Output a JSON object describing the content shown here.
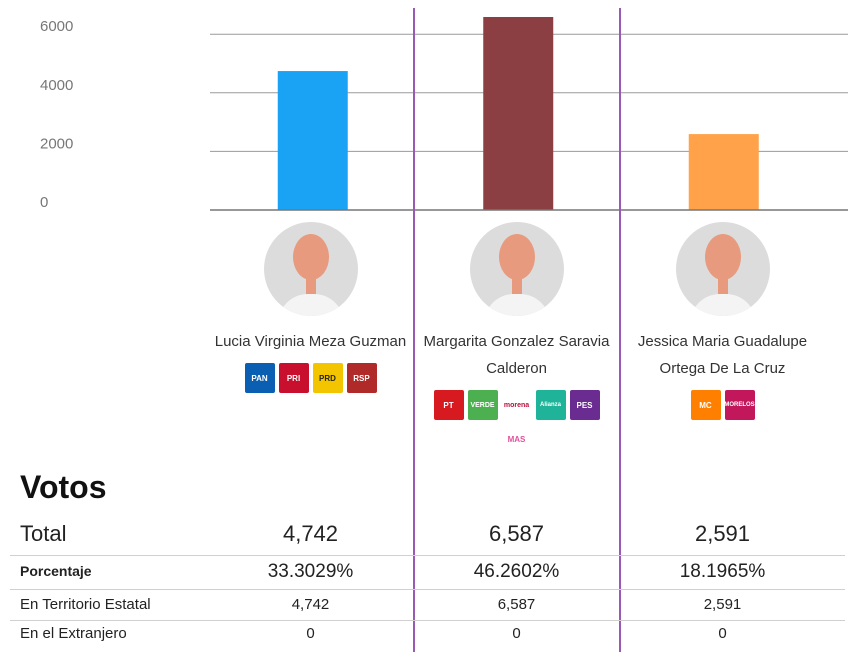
{
  "chart_data": {
    "type": "bar",
    "categories": [
      "Lucia Virginia Meza Guzman",
      "Margarita Gonzalez Saravia Calderon",
      "Jessica Maria Guadalupe Ortega De La Cruz"
    ],
    "values": [
      4742,
      6587,
      2591
    ],
    "colors": [
      "#1aa3f5",
      "#8b3f42",
      "#ffa24a"
    ],
    "y_ticks": [
      6000,
      4000,
      2000,
      0
    ],
    "ylim": [
      0,
      6587
    ],
    "grid": true
  },
  "candidates": [
    {
      "name": "Lucia Virginia Meza Guzman",
      "parties": [
        {
          "label": "PAN",
          "icon": "pan-logo-icon",
          "color": "#0b5fb3"
        },
        {
          "label": "PRI",
          "icon": "pri-logo-icon",
          "color": "#c8102e"
        },
        {
          "label": "PRD",
          "icon": "prd-logo-icon",
          "color": "#f2c500"
        },
        {
          "label": "RSP",
          "icon": "rsp-logo-icon",
          "color": "#b02a2a"
        }
      ]
    },
    {
      "name": "Margarita Gonzalez Saravia Calderon",
      "parties": [
        {
          "label": "PT",
          "icon": "pt-logo-icon",
          "color": "#d71920"
        },
        {
          "label": "VERDE",
          "icon": "verde-logo-icon",
          "color": "#4caf50"
        },
        {
          "label": "morena",
          "icon": "morena-logo-icon",
          "color": "#b5123b"
        },
        {
          "label": "Alianza",
          "icon": "alianza-logo-icon",
          "color": "#1fb39a"
        },
        {
          "label": "PES",
          "icon": "pes-logo-icon",
          "color": "#6a2c91"
        },
        {
          "label": "MAS",
          "icon": "mas-logo-icon",
          "color": "#e0529c"
        }
      ]
    },
    {
      "name": "Jessica Maria Guadalupe Ortega De La Cruz",
      "parties": [
        {
          "label": "MC",
          "icon": "mc-logo-icon",
          "color": "#ff7f00"
        },
        {
          "label": "MORELOS",
          "icon": "morelos-logo-icon",
          "color": "#c2185b"
        }
      ]
    }
  ],
  "table": {
    "title": "Votos",
    "rows": [
      {
        "label": "Total",
        "values": [
          "4,742",
          "6,587",
          "2,591"
        ]
      },
      {
        "label": "Porcentaje",
        "values": [
          "33.3029%",
          "46.2602%",
          "18.1965%"
        ]
      },
      {
        "label": "En Territorio Estatal",
        "values": [
          "4,742",
          "6,587",
          "2,591"
        ]
      },
      {
        "label": "En el Extranjero",
        "values": [
          "0",
          "0",
          "0"
        ]
      }
    ]
  }
}
